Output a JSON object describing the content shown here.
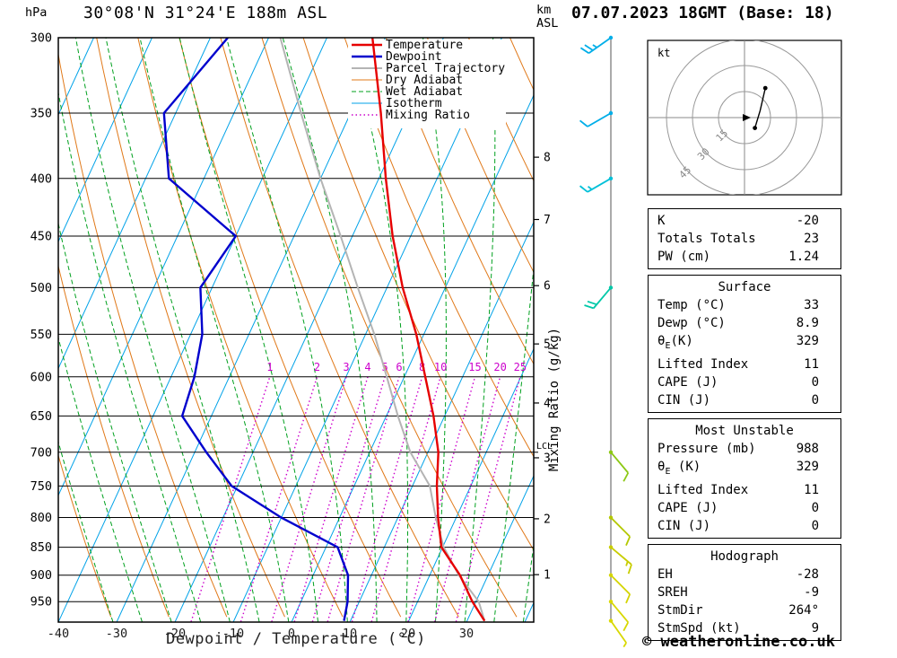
{
  "header": {
    "pressure_axis_unit": "hPa",
    "title": "30°08'N 31°24'E 188m ASL",
    "altitude_unit_top": "km",
    "altitude_unit_bottom": "ASL",
    "datetime": "07.07.2023 18GMT (Base: 18)"
  },
  "footer": {
    "xaxis_label": "Dewpoint / Temperature (°C)",
    "copyright": "© weatheronline.co.uk"
  },
  "legend": [
    {
      "label": "Temperature",
      "color": "#e60000",
      "width": 2.4,
      "dash": ""
    },
    {
      "label": "Dewpoint",
      "color": "#0000cd",
      "width": 2.4,
      "dash": ""
    },
    {
      "label": "Parcel Trajectory",
      "color": "#b4b4b4",
      "width": 2,
      "dash": ""
    },
    {
      "label": "Dry Adiabat",
      "color": "#e07818",
      "width": 1,
      "dash": ""
    },
    {
      "label": "Wet Adiabat",
      "color": "#00a01e",
      "width": 1,
      "dash": "5 3"
    },
    {
      "label": "Isotherm",
      "color": "#00a2e8",
      "width": 1,
      "dash": ""
    },
    {
      "label": "Mixing Ratio",
      "color": "#cc00cc",
      "width": 1.4,
      "dash": "1.5 3"
    }
  ],
  "chart_data": {
    "type": "line",
    "title": "Skew-T log-P sounding 30°08'N 31°24'E 188m ASL",
    "x_axis": {
      "label": "Dewpoint / Temperature (°C)",
      "ticks": [
        -40,
        -30,
        -20,
        -10,
        0,
        10,
        20,
        30
      ],
      "unit": "°C"
    },
    "y_axis": {
      "label": "hPa",
      "scale": "log",
      "ticks": [
        300,
        350,
        400,
        450,
        500,
        550,
        600,
        650,
        700,
        750,
        800,
        850,
        900,
        950
      ],
      "surface_pressure": 990
    },
    "km_axis": {
      "ticks": [
        {
          "km": 1,
          "p": 899
        },
        {
          "km": 2,
          "p": 802
        },
        {
          "km": 3,
          "p": 708
        },
        {
          "km": 4,
          "p": 633
        },
        {
          "km": 5,
          "p": 561
        },
        {
          "km": 6,
          "p": 498
        },
        {
          "km": 7,
          "p": 435
        },
        {
          "km": 8,
          "p": 383
        }
      ]
    },
    "lcl": {
      "label": "LCL",
      "p": 700
    },
    "mixing_ratio": {
      "values": [
        1,
        2,
        3,
        4,
        5,
        6,
        8,
        10,
        15,
        20,
        25
      ],
      "top_p": 600,
      "axis_label": "Mixing Ratio (g/kg)"
    },
    "isotherms_c": {
      "min": -90,
      "max": 40,
      "step": 10
    },
    "dry_adiabats_c": {
      "min": -40,
      "max": 110,
      "step": 10
    },
    "wet_adiabats_c": {
      "min": -30,
      "max": 40,
      "step": 5
    },
    "temperature_profile": [
      {
        "p": 988,
        "t": 33
      },
      {
        "p": 950,
        "t": 29.4
      },
      {
        "p": 900,
        "t": 25.2
      },
      {
        "p": 850,
        "t": 19.8
      },
      {
        "p": 800,
        "t": 16.9
      },
      {
        "p": 750,
        "t": 14.2
      },
      {
        "p": 700,
        "t": 11.8
      },
      {
        "p": 650,
        "t": 8.1
      },
      {
        "p": 600,
        "t": 3.6
      },
      {
        "p": 550,
        "t": -1.3
      },
      {
        "p": 500,
        "t": -7.3
      },
      {
        "p": 450,
        "t": -13.1
      },
      {
        "p": 400,
        "t": -18.8
      },
      {
        "p": 350,
        "t": -24.8
      },
      {
        "p": 300,
        "t": -32.2
      }
    ],
    "dewpoint_profile": [
      {
        "p": 988,
        "t": 8.9
      },
      {
        "p": 950,
        "t": 8
      },
      {
        "p": 900,
        "t": 6
      },
      {
        "p": 850,
        "t": 2
      },
      {
        "p": 800,
        "t": -10
      },
      {
        "p": 750,
        "t": -21
      },
      {
        "p": 700,
        "t": -28
      },
      {
        "p": 650,
        "t": -35
      },
      {
        "p": 600,
        "t": -36
      },
      {
        "p": 550,
        "t": -38
      },
      {
        "p": 500,
        "t": -42
      },
      {
        "p": 450,
        "t": -40
      },
      {
        "p": 400,
        "t": -56
      },
      {
        "p": 350,
        "t": -62
      },
      {
        "p": 300,
        "t": -57
      }
    ],
    "parcel_profile": [
      {
        "p": 988,
        "t": 33
      },
      {
        "p": 950,
        "t": 30.5
      },
      {
        "p": 900,
        "t": 25
      },
      {
        "p": 850,
        "t": 20.2
      },
      {
        "p": 800,
        "t": 16.5
      },
      {
        "p": 750,
        "t": 13
      },
      {
        "p": 700,
        "t": 7
      },
      {
        "p": 650,
        "t": 2
      },
      {
        "p": 600,
        "t": -3
      },
      {
        "p": 550,
        "t": -8.5
      },
      {
        "p": 500,
        "t": -15
      },
      {
        "p": 450,
        "t": -22
      },
      {
        "p": 400,
        "t": -30
      },
      {
        "p": 350,
        "t": -38.5
      },
      {
        "p": 300,
        "t": -48
      }
    ],
    "wind_barbs": [
      {
        "p": 300,
        "speed_kt": 25,
        "dir_deg": 235,
        "color": "#00aee8"
      },
      {
        "p": 350,
        "speed_kt": 10,
        "dir_deg": 240,
        "color": "#00aee8"
      },
      {
        "p": 400,
        "speed_kt": 15,
        "dir_deg": 240,
        "color": "#00c0d8"
      },
      {
        "p": 500,
        "speed_kt": 20,
        "dir_deg": 220,
        "color": "#00c8a8"
      },
      {
        "p": 700,
        "speed_kt": 10,
        "dir_deg": 140,
        "color": "#8cc814"
      },
      {
        "p": 800,
        "speed_kt": 10,
        "dir_deg": 135,
        "color": "#b4c800"
      },
      {
        "p": 850,
        "speed_kt": 15,
        "dir_deg": 130,
        "color": "#c8cd00"
      },
      {
        "p": 900,
        "speed_kt": 10,
        "dir_deg": 135,
        "color": "#d4d400"
      },
      {
        "p": 950,
        "speed_kt": 10,
        "dir_deg": 140,
        "color": "#d8d800"
      },
      {
        "p": 988,
        "speed_kt": 5,
        "dir_deg": 145,
        "color": "#d8d800"
      }
    ]
  },
  "hodograph": {
    "unit_label": "kt",
    "rings_kt": [
      15,
      30,
      45
    ],
    "trace_kt": [
      [
        6,
        -6
      ],
      [
        9,
        4
      ],
      [
        12,
        17
      ]
    ]
  },
  "tables": [
    {
      "title": "",
      "rows": [
        [
          "K",
          "-20"
        ],
        [
          "Totals Totals",
          "23"
        ],
        [
          "PW (cm)",
          "1.24"
        ]
      ]
    },
    {
      "title": "Surface",
      "rows": [
        [
          "Temp (°C)",
          "33"
        ],
        [
          "Dewp (°C)",
          "8.9"
        ],
        [
          "θE(K)",
          "329"
        ],
        [
          "Lifted Index",
          "11"
        ],
        [
          "CAPE (J)",
          "0"
        ],
        [
          "CIN (J)",
          "0"
        ]
      ]
    },
    {
      "title": "Most Unstable",
      "rows": [
        [
          "Pressure (mb)",
          "988"
        ],
        [
          "θE (K)",
          "329"
        ],
        [
          "Lifted Index",
          "11"
        ],
        [
          "CAPE (J)",
          "0"
        ],
        [
          "CIN (J)",
          "0"
        ]
      ]
    },
    {
      "title": "Hodograph",
      "rows": [
        [
          "EH",
          "-28"
        ],
        [
          "SREH",
          "-9"
        ],
        [
          "StmDir",
          "264°"
        ],
        [
          "StmSpd (kt)",
          "9"
        ]
      ]
    }
  ]
}
